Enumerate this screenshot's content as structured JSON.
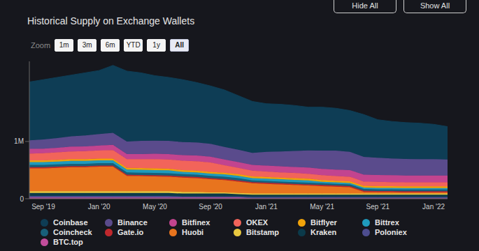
{
  "chart_data": {
    "type": "area",
    "title": "Historical Supply on Exchange Wallets",
    "stacked": true,
    "grid": false,
    "legend": "bottom",
    "categories": [
      null,
      "Sep '19",
      null,
      null,
      null,
      "Jan '20",
      null,
      null,
      null,
      "May '20",
      null,
      null,
      null,
      "Sep '20",
      null,
      null,
      null,
      "Jan '21",
      null,
      null,
      null,
      "May '21",
      null,
      null,
      null,
      "Sep '21",
      null,
      null,
      null,
      "Jan '22",
      null
    ],
    "ylim": [
      0,
      2400000
    ],
    "yticks": [
      0,
      {
        "value": 1000000,
        "label": "1M"
      }
    ],
    "series": [
      {
        "name": "Coinbase",
        "color": "#0e3d55",
        "values": [
          1020000,
          1045000,
          1060000,
          1070000,
          1095000,
          1110000,
          1180000,
          1230000,
          1190000,
          1135000,
          1110000,
          1090000,
          1045000,
          1010000,
          995000,
          945000,
          900000,
          840000,
          825000,
          795000,
          755000,
          760000,
          740000,
          720000,
          740000,
          665000,
          645000,
          635000,
          630000,
          610000,
          575000
        ]
      },
      {
        "name": "Binance",
        "color": "#5a4b8c",
        "values": [
          150000,
          160000,
          170000,
          180000,
          190000,
          200000,
          210000,
          220000,
          230000,
          230000,
          230000,
          230000,
          230000,
          225000,
          220000,
          215000,
          210000,
          240000,
          260000,
          280000,
          300000,
          320000,
          330000,
          320000,
          310000,
          300000,
          295000,
          290000,
          285000,
          285000,
          280000
        ]
      },
      {
        "name": "Bitfinex",
        "color": "#c2448f",
        "values": [
          80000,
          80000,
          80000,
          85000,
          85000,
          85000,
          90000,
          90000,
          90000,
          95000,
          95000,
          95000,
          100000,
          100000,
          100000,
          100000,
          100000,
          105000,
          105000,
          105000,
          110000,
          110000,
          115000,
          115000,
          120000,
          120000,
          120000,
          120000,
          120000,
          120000,
          120000
        ]
      },
      {
        "name": "OKEX",
        "color": "#f2645a",
        "values": [
          120000,
          125000,
          130000,
          135000,
          140000,
          145000,
          150000,
          150000,
          155000,
          160000,
          160000,
          165000,
          165000,
          165000,
          130000,
          110000,
          100000,
          95000,
          90000,
          90000,
          85000,
          85000,
          80000,
          80000,
          75000,
          75000,
          70000,
          70000,
          70000,
          70000,
          70000
        ]
      },
      {
        "name": "Bitflyer",
        "color": "#f0a30a",
        "values": [
          30000,
          30000,
          30000,
          30000,
          30000,
          30000,
          30000,
          30000,
          30000,
          30000,
          30000,
          30000,
          30000,
          30000,
          30000,
          30000,
          30000,
          30000,
          30000,
          30000,
          30000,
          30000,
          30000,
          30000,
          30000,
          30000,
          30000,
          30000,
          30000,
          30000,
          30000
        ]
      },
      {
        "name": "Bittrex",
        "color": "#1f9bbd",
        "values": [
          50000,
          50000,
          50000,
          50000,
          50000,
          50000,
          50000,
          50000,
          50000,
          50000,
          50000,
          40000,
          40000,
          40000,
          40000,
          40000,
          40000,
          40000,
          40000,
          40000,
          40000,
          25000,
          25000,
          25000,
          25000,
          25000,
          25000,
          25000,
          25000,
          25000,
          25000
        ]
      },
      {
        "name": "Coincheck",
        "color": "#17607a",
        "values": [
          40000,
          40000,
          40000,
          40000,
          40000,
          40000,
          40000,
          40000,
          40000,
          40000,
          40000,
          40000,
          40000,
          40000,
          40000,
          40000,
          30000,
          30000,
          30000,
          30000,
          30000,
          30000,
          30000,
          30000,
          30000,
          30000,
          30000,
          30000,
          30000,
          30000,
          30000
        ]
      },
      {
        "name": "Gate.io",
        "color": "#c0282d",
        "values": [
          20000,
          20000,
          20000,
          20000,
          20000,
          20000,
          20000,
          20000,
          20000,
          20000,
          20000,
          20000,
          20000,
          20000,
          20000,
          20000,
          20000,
          20000,
          20000,
          20000,
          20000,
          20000,
          20000,
          20000,
          20000,
          20000,
          20000,
          20000,
          20000,
          20000,
          20000
        ]
      },
      {
        "name": "Huobi",
        "color": "#e8741e",
        "values": [
          400000,
          400000,
          410000,
          420000,
          420000,
          430000,
          430000,
          270000,
          265000,
          260000,
          255000,
          250000,
          240000,
          230000,
          215000,
          200000,
          180000,
          170000,
          160000,
          150000,
          140000,
          130000,
          120000,
          110000,
          30000,
          25000,
          25000,
          20000,
          20000,
          20000,
          20000
        ]
      },
      {
        "name": "Bitstamp",
        "color": "#e8c840",
        "values": [
          30000,
          30000,
          30000,
          30000,
          30000,
          30000,
          30000,
          30000,
          30000,
          30000,
          30000,
          30000,
          30000,
          20000,
          20000,
          20000,
          20000,
          20000,
          20000,
          20000,
          20000,
          20000,
          20000,
          20000,
          20000,
          20000,
          20000,
          20000,
          20000,
          20000,
          20000
        ]
      },
      {
        "name": "Kraken",
        "color": "#0b3a4a",
        "values": [
          50000,
          50000,
          50000,
          50000,
          50000,
          50000,
          50000,
          50000,
          50000,
          50000,
          50000,
          50000,
          50000,
          50000,
          50000,
          40000,
          40000,
          40000,
          40000,
          40000,
          40000,
          40000,
          40000,
          40000,
          40000,
          40000,
          40000,
          40000,
          40000,
          40000,
          40000
        ]
      },
      {
        "name": "Poloniex",
        "color": "#4d4d8f",
        "values": [
          30000,
          30000,
          30000,
          30000,
          30000,
          30000,
          30000,
          30000,
          30000,
          30000,
          30000,
          20000,
          20000,
          20000,
          20000,
          20000,
          20000,
          20000,
          20000,
          20000,
          20000,
          20000,
          20000,
          20000,
          20000,
          20000,
          20000,
          20000,
          20000,
          20000,
          20000
        ]
      },
      {
        "name": "BTC.top",
        "color": "#c24d9c",
        "values": [
          20000,
          20000,
          20000,
          20000,
          20000,
          20000,
          20000,
          20000,
          20000,
          20000,
          20000,
          20000,
          20000,
          20000,
          20000,
          20000,
          10000,
          10000,
          10000,
          10000,
          10000,
          10000,
          10000,
          10000,
          10000,
          10000,
          10000,
          10000,
          10000,
          10000,
          10000
        ]
      }
    ]
  },
  "controls": {
    "zoom_label": "Zoom",
    "zoom_options": [
      "1m",
      "3m",
      "6m",
      "YTD",
      "1y",
      "All"
    ],
    "selected": "All",
    "buttons": [
      "Hide All",
      "Show All"
    ]
  }
}
